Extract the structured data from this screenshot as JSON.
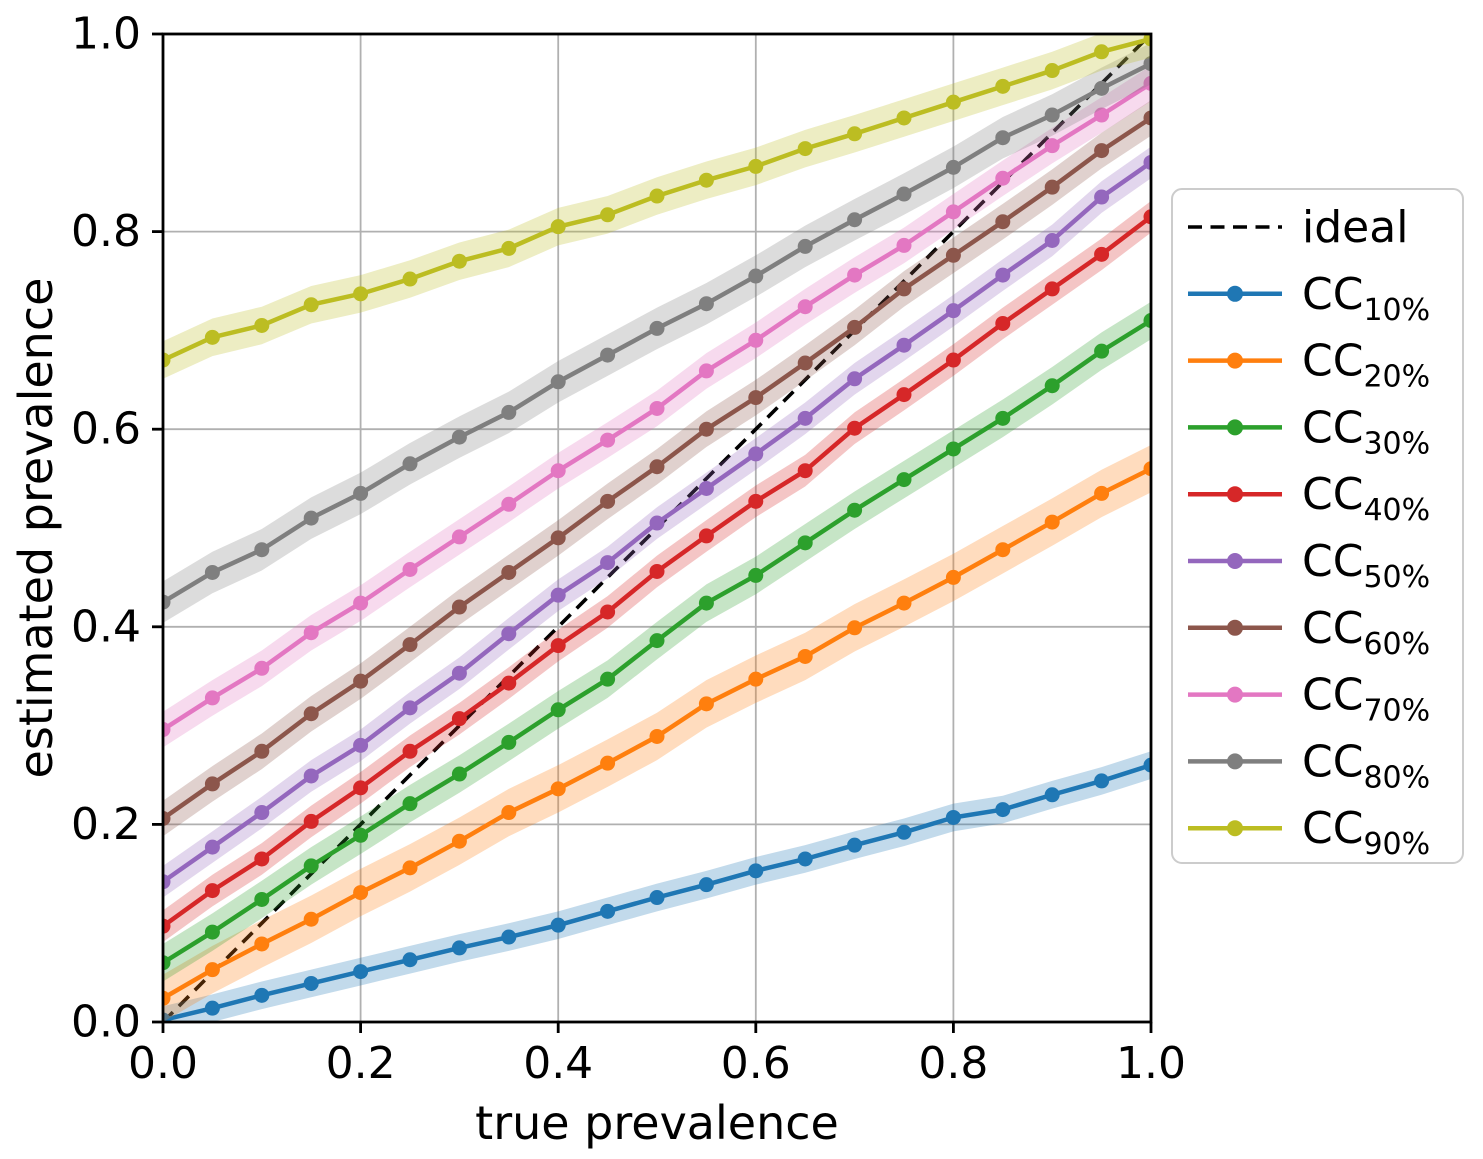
{
  "chart_data": {
    "type": "line",
    "title": "",
    "xlabel": "true prevalence",
    "ylabel": "estimated prevalence",
    "xlim": [
      0.0,
      1.0
    ],
    "ylim": [
      0.0,
      1.0
    ],
    "xticks": [
      0.0,
      0.2,
      0.4,
      0.6,
      0.8,
      1.0
    ],
    "yticks": [
      0.0,
      0.2,
      0.4,
      0.6,
      0.8,
      1.0
    ],
    "xtick_labels": [
      "0.0",
      "0.2",
      "0.4",
      "0.6",
      "0.8",
      "1.0"
    ],
    "ytick_labels": [
      "0.0",
      "0.2",
      "0.4",
      "0.6",
      "0.8",
      "1.0"
    ],
    "grid": true,
    "grid_color": "#b0b0b0",
    "legend_position": "right-outside",
    "reference_line": {
      "label": "ideal",
      "style": "dashed",
      "color": "#000000",
      "from": [
        0.0,
        0.0
      ],
      "to": [
        1.0,
        1.0
      ]
    },
    "x": [
      0.0,
      0.05,
      0.1,
      0.15,
      0.2,
      0.25,
      0.3,
      0.35,
      0.4,
      0.45,
      0.5,
      0.55,
      0.6,
      0.65,
      0.7,
      0.75,
      0.8,
      0.85,
      0.9,
      0.95,
      1.0
    ],
    "series": [
      {
        "name": "CC_10%",
        "label_main": "CC",
        "label_sub": "10%",
        "color": "#1f77b4",
        "band_halfwidth": 0.014,
        "values": [
          0.002,
          0.014,
          0.027,
          0.039,
          0.051,
          0.063,
          0.075,
          0.086,
          0.098,
          0.112,
          0.126,
          0.139,
          0.153,
          0.165,
          0.179,
          0.192,
          0.207,
          0.215,
          0.23,
          0.244,
          0.26
        ]
      },
      {
        "name": "CC_20%",
        "label_main": "CC",
        "label_sub": "20%",
        "color": "#ff7f0e",
        "band_halfwidth": 0.024,
        "values": [
          0.024,
          0.053,
          0.079,
          0.104,
          0.131,
          0.156,
          0.183,
          0.212,
          0.236,
          0.262,
          0.289,
          0.322,
          0.347,
          0.37,
          0.399,
          0.424,
          0.45,
          0.478,
          0.506,
          0.535,
          0.56
        ]
      },
      {
        "name": "CC_30%",
        "label_main": "CC",
        "label_sub": "30%",
        "color": "#2ca02c",
        "band_halfwidth": 0.019,
        "values": [
          0.06,
          0.091,
          0.124,
          0.158,
          0.189,
          0.221,
          0.251,
          0.283,
          0.316,
          0.347,
          0.386,
          0.424,
          0.452,
          0.485,
          0.518,
          0.549,
          0.58,
          0.611,
          0.644,
          0.679,
          0.71
        ]
      },
      {
        "name": "CC_40%",
        "label_main": "CC",
        "label_sub": "40%",
        "color": "#d62728",
        "band_halfwidth": 0.016,
        "values": [
          0.097,
          0.133,
          0.165,
          0.203,
          0.237,
          0.274,
          0.307,
          0.343,
          0.381,
          0.415,
          0.456,
          0.492,
          0.527,
          0.558,
          0.601,
          0.635,
          0.67,
          0.707,
          0.742,
          0.777,
          0.815
        ]
      },
      {
        "name": "CC_50%",
        "label_main": "CC",
        "label_sub": "50%",
        "color": "#9467bd",
        "band_halfwidth": 0.016,
        "values": [
          0.142,
          0.177,
          0.212,
          0.249,
          0.28,
          0.318,
          0.353,
          0.393,
          0.432,
          0.465,
          0.505,
          0.54,
          0.575,
          0.611,
          0.651,
          0.685,
          0.72,
          0.756,
          0.791,
          0.835,
          0.87
        ]
      },
      {
        "name": "CC_60%",
        "label_main": "CC",
        "label_sub": "60%",
        "color": "#8c564b",
        "band_halfwidth": 0.018,
        "values": [
          0.206,
          0.241,
          0.274,
          0.312,
          0.345,
          0.382,
          0.42,
          0.455,
          0.49,
          0.527,
          0.562,
          0.6,
          0.632,
          0.667,
          0.703,
          0.742,
          0.776,
          0.81,
          0.845,
          0.882,
          0.915
        ]
      },
      {
        "name": "CC_70%",
        "label_main": "CC",
        "label_sub": "70%",
        "color": "#e377c2",
        "band_halfwidth": 0.018,
        "values": [
          0.296,
          0.328,
          0.358,
          0.394,
          0.424,
          0.458,
          0.491,
          0.524,
          0.558,
          0.589,
          0.621,
          0.659,
          0.69,
          0.724,
          0.756,
          0.786,
          0.82,
          0.854,
          0.887,
          0.918,
          0.95
        ]
      },
      {
        "name": "CC_80%",
        "label_main": "CC",
        "label_sub": "80%",
        "color": "#7f7f7f",
        "band_halfwidth": 0.021,
        "values": [
          0.425,
          0.455,
          0.478,
          0.51,
          0.535,
          0.565,
          0.592,
          0.617,
          0.648,
          0.675,
          0.702,
          0.727,
          0.755,
          0.785,
          0.812,
          0.838,
          0.865,
          0.895,
          0.918,
          0.945,
          0.97
        ]
      },
      {
        "name": "CC_90%",
        "label_main": "CC",
        "label_sub": "90%",
        "color": "#bcbd22",
        "band_halfwidth": 0.019,
        "values": [
          0.67,
          0.693,
          0.705,
          0.726,
          0.737,
          0.752,
          0.77,
          0.783,
          0.805,
          0.817,
          0.836,
          0.852,
          0.866,
          0.884,
          0.899,
          0.915,
          0.931,
          0.947,
          0.963,
          0.982,
          0.995
        ]
      }
    ]
  }
}
